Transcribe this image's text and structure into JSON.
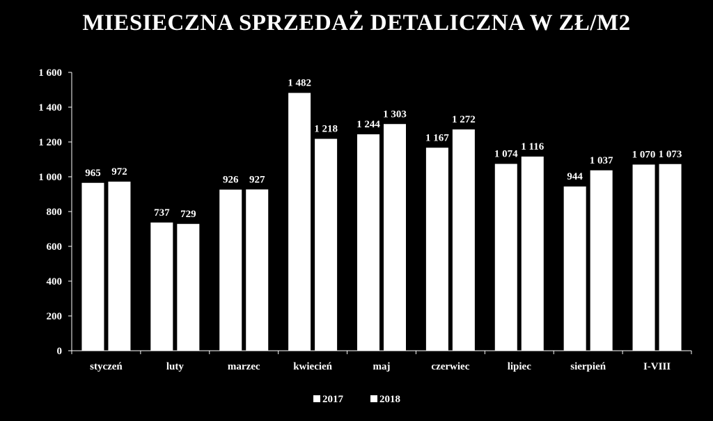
{
  "chart_data": {
    "type": "bar",
    "title": "MIESIECZNA SPRZEDAŻ DETALICZNA W ZŁ/M2",
    "xlabel": "",
    "ylabel": "",
    "categories": [
      "styczeń",
      "luty",
      "marzec",
      "kwiecień",
      "maj",
      "czerwiec",
      "lipiec",
      "sierpień",
      "I-VIII"
    ],
    "series": [
      {
        "name": "2017",
        "values": [
          965,
          737,
          926,
          1482,
          1244,
          1167,
          1074,
          944,
          1070
        ],
        "labels": [
          "965",
          "737",
          "926",
          "1 482",
          "1 244",
          "1 167",
          "1 074",
          "944",
          "1 070"
        ]
      },
      {
        "name": "2018",
        "values": [
          972,
          729,
          927,
          1218,
          1303,
          1272,
          1116,
          1037,
          1073
        ],
        "labels": [
          "972",
          "729",
          "927",
          "1 218",
          "1 303",
          "1 272",
          "1 116",
          "1 037",
          "1 073"
        ]
      }
    ],
    "ylim": [
      0,
      1600
    ],
    "yticks": [
      0,
      200,
      400,
      600,
      800,
      1000,
      1200,
      1400,
      1600
    ],
    "ytick_labels": [
      "0",
      "200",
      "400",
      "600",
      "800",
      "1 000",
      "1 200",
      "1 400",
      "1 600"
    ],
    "grid": false,
    "legend_position": "bottom",
    "colors": {
      "background": "#000000",
      "bars": "#ffffff",
      "text": "#ffffff",
      "axis": "#ffffff"
    }
  }
}
